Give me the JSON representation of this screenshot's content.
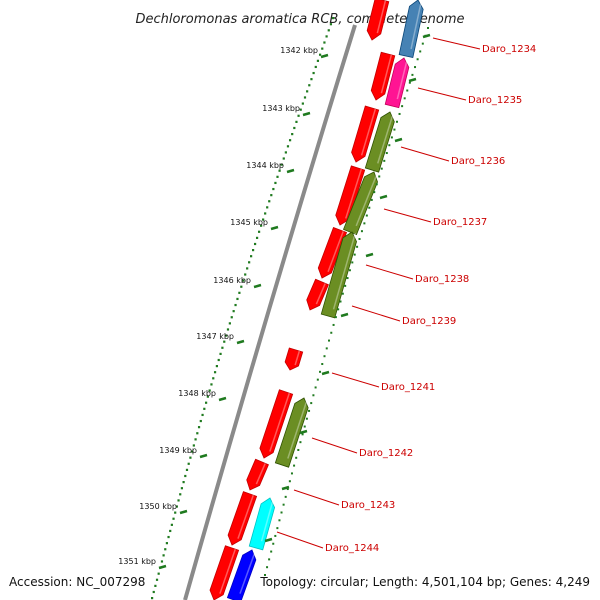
{
  "title": "Dechloromonas aromatica RCB, complete genome",
  "footer": {
    "accession": "Accession: NC_007298",
    "topology": "Topology: circular; Length: 4,501,104 bp; Genes: 4,249"
  },
  "colors": {
    "background": "#ffffff",
    "backbone": "#8a8a8a",
    "tick": "#1f7a1f",
    "label": "#cc0000",
    "red_gene": "#ff0000",
    "olive_gene": "#6b8e23",
    "magenta_gene": "#ff1493",
    "steelblue_gene": "#4682b4",
    "cyan_gene": "#00ffff",
    "blue_gene": "#0000ff"
  },
  "ticks": [
    {
      "label": "1342 kbp"
    },
    {
      "label": "1343 kbp"
    },
    {
      "label": "1344 kbp"
    },
    {
      "label": "1345 kbp"
    },
    {
      "label": "1346 kbp"
    },
    {
      "label": "1347 kbp"
    },
    {
      "label": "1348 kbp"
    },
    {
      "label": "1349 kbp"
    },
    {
      "label": "1350 kbp"
    },
    {
      "label": "1351 kbp"
    }
  ],
  "gene_labels": [
    {
      "name": "Daro_1234"
    },
    {
      "name": "Daro_1235"
    },
    {
      "name": "Daro_1236"
    },
    {
      "name": "Daro_1237"
    },
    {
      "name": "Daro_1238"
    },
    {
      "name": "Daro_1239"
    },
    {
      "name": "Daro_1241"
    },
    {
      "name": "Daro_1242"
    },
    {
      "name": "Daro_1243"
    },
    {
      "name": "Daro_1244"
    }
  ]
}
